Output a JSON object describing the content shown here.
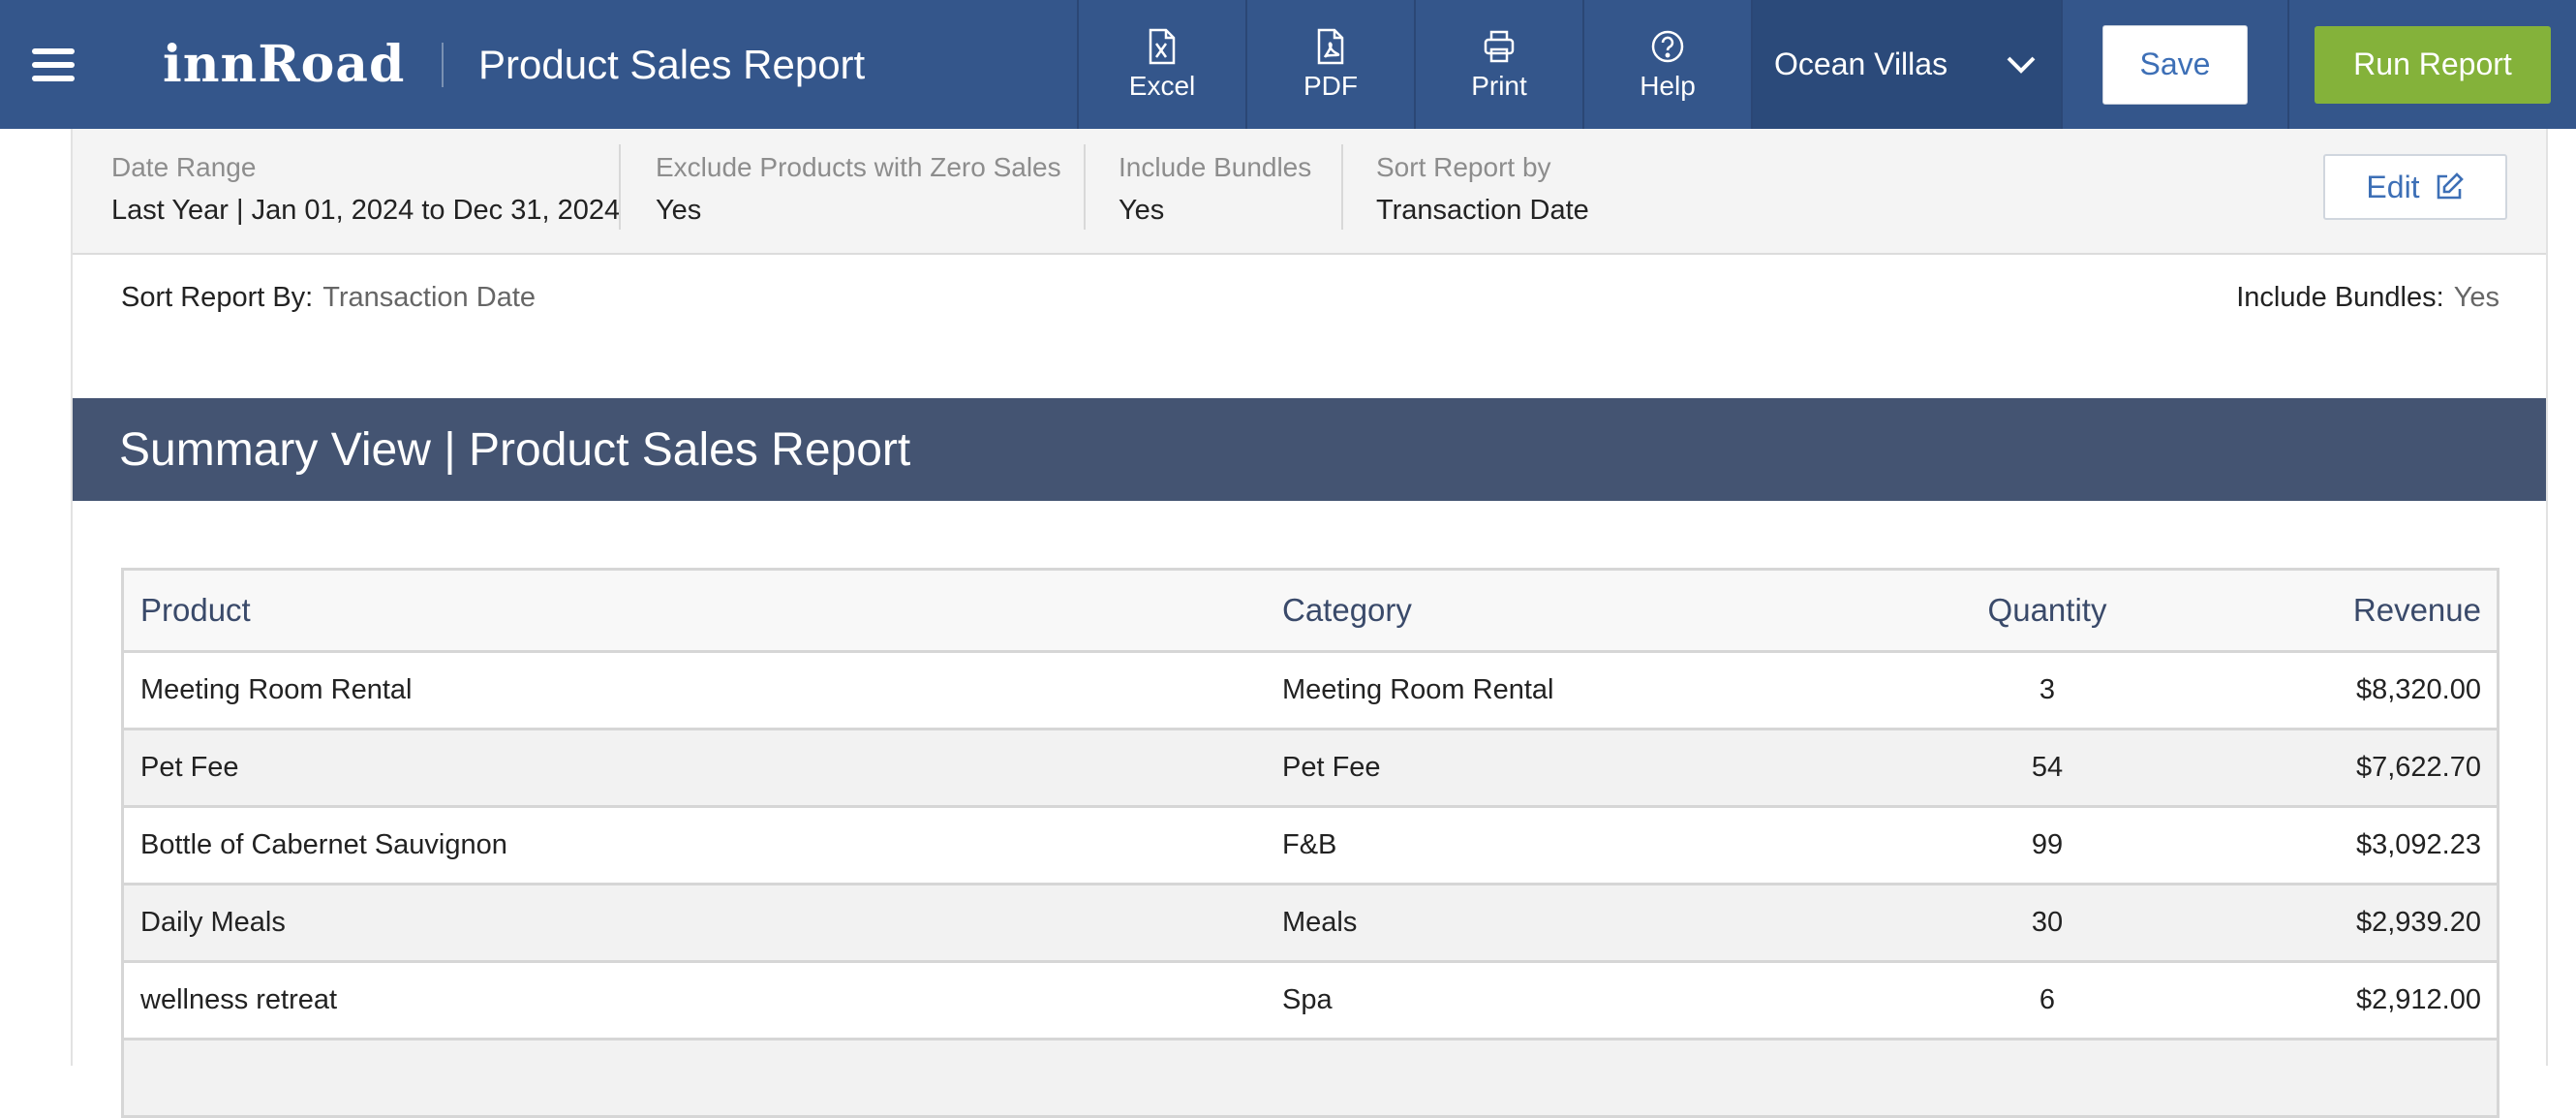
{
  "app": {
    "logo": "innRoad",
    "title": "Product Sales Report"
  },
  "toolbar": {
    "excel": "Excel",
    "pdf": "PDF",
    "print": "Print",
    "help": "Help",
    "property": "Ocean Villas",
    "save": "Save",
    "run": "Run Report"
  },
  "filters": [
    {
      "label": "Date Range",
      "value": "Last Year | Jan 01, 2024 to Dec 31, 2024"
    },
    {
      "label": "Exclude Products with Zero Sales",
      "value": "Yes"
    },
    {
      "label": "Include Bundles",
      "value": "Yes"
    },
    {
      "label": "Sort Report by",
      "value": "Transaction Date"
    }
  ],
  "edit_label": "Edit",
  "meta": {
    "sort_key": "Sort Report By:",
    "sort_value": "Transaction Date",
    "bundles_key": "Include Bundles:",
    "bundles_value": "Yes"
  },
  "section_title": "Summary View | Product Sales Report",
  "table": {
    "headers": {
      "product": "Product",
      "category": "Category",
      "quantity": "Quantity",
      "revenue": "Revenue"
    },
    "rows": [
      {
        "product": "Meeting Room Rental",
        "category": "Meeting Room Rental",
        "quantity": "3",
        "revenue": "$8,320.00"
      },
      {
        "product": "Pet Fee",
        "category": "Pet Fee",
        "quantity": "54",
        "revenue": "$7,622.70"
      },
      {
        "product": "Bottle of Cabernet Sauvignon",
        "category": "F&B",
        "quantity": "99",
        "revenue": "$3,092.23"
      },
      {
        "product": "Daily Meals",
        "category": "Meals",
        "quantity": "30",
        "revenue": "$2,939.20"
      },
      {
        "product": "wellness retreat",
        "category": "Spa",
        "quantity": "6",
        "revenue": "$2,912.00"
      },
      {
        "product": "",
        "category": "",
        "quantity": "",
        "revenue": ""
      }
    ]
  },
  "icons": {
    "menu": "hamburger-menu-icon",
    "excel": "excel-file-icon",
    "pdf": "pdf-file-icon",
    "print": "printer-icon",
    "help": "help-circle-icon",
    "dropdown": "chevron-down-icon",
    "edit": "edit-pencil-icon"
  },
  "colors": {
    "topbar": "#34568b",
    "section_header": "#445472",
    "run_button": "#84b23a",
    "link_blue": "#3d6fb6"
  }
}
